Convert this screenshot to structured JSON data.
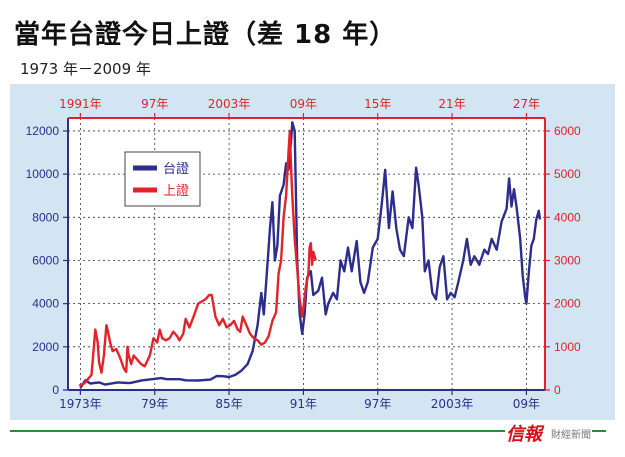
{
  "title": "當年台證今日上證（差 18 年）",
  "subtitle": "1973 年－2009 年",
  "brand": {
    "name": "信報",
    "sub": "財經新聞"
  },
  "chart_data": {
    "type": "line",
    "legend_position": "top-left",
    "grid": true,
    "x_bottom": {
      "ticks": [
        {
          "label": "1973年",
          "year": 1973
        },
        {
          "label": "79年",
          "year": 1979
        },
        {
          "label": "85年",
          "year": 1985
        },
        {
          "label": "91年",
          "year": 1991
        },
        {
          "label": "97年",
          "year": 1997
        },
        {
          "label": "2003年",
          "year": 2003
        },
        {
          "label": "09年",
          "year": 2009
        }
      ],
      "range": [
        1972,
        2010.5
      ]
    },
    "x_top": {
      "ticks": [
        {
          "label": "1991年",
          "year": 1991
        },
        {
          "label": "97年",
          "year": 1997
        },
        {
          "label": "2003年",
          "year": 2003
        },
        {
          "label": "09年",
          "year": 2009
        },
        {
          "label": "15年",
          "year": 2015
        },
        {
          "label": "21年",
          "year": 2021
        },
        {
          "label": "27年",
          "year": 2027
        }
      ],
      "range": [
        1990,
        2028.5
      ]
    },
    "y_left": {
      "ticks": [
        0,
        2000,
        4000,
        6000,
        8000,
        10000,
        12000
      ],
      "range": [
        0,
        12600
      ],
      "color": "#2d2d8c"
    },
    "y_right": {
      "ticks": [
        0,
        1000,
        2000,
        3000,
        4000,
        5000,
        6000
      ],
      "range": [
        0,
        6300
      ],
      "color": "#e0242a"
    },
    "series": [
      {
        "name": "台證",
        "axis": "left",
        "x_axis": "bottom",
        "color": "#2d2d8c",
        "points": [
          [
            1973,
            100
          ],
          [
            1973.4,
            450
          ],
          [
            1973.8,
            300
          ],
          [
            1974.5,
            350
          ],
          [
            1975,
            250
          ],
          [
            1976,
            350
          ],
          [
            1977,
            320
          ],
          [
            1978,
            450
          ],
          [
            1978.8,
            500
          ],
          [
            1979.5,
            550
          ],
          [
            1980,
            500
          ],
          [
            1981,
            500
          ],
          [
            1981.5,
            450
          ],
          [
            1982.5,
            440
          ],
          [
            1983.5,
            480
          ],
          [
            1984,
            650
          ],
          [
            1984.5,
            640
          ],
          [
            1985,
            600
          ],
          [
            1985.5,
            700
          ],
          [
            1986,
            900
          ],
          [
            1986.5,
            1200
          ],
          [
            1986.9,
            1800
          ],
          [
            1987.3,
            3000
          ],
          [
            1987.6,
            4500
          ],
          [
            1987.8,
            3500
          ],
          [
            1988,
            5000
          ],
          [
            1988.3,
            7500
          ],
          [
            1988.5,
            8700
          ],
          [
            1988.7,
            6000
          ],
          [
            1988.9,
            6700
          ],
          [
            1989.1,
            9000
          ],
          [
            1989.4,
            9500
          ],
          [
            1989.6,
            10500
          ],
          [
            1989.8,
            10200
          ],
          [
            1990.0,
            11500
          ],
          [
            1990.1,
            12400
          ],
          [
            1990.3,
            12000
          ],
          [
            1990.5,
            6000
          ],
          [
            1990.7,
            3500
          ],
          [
            1990.9,
            2600
          ],
          [
            1991.1,
            3500
          ],
          [
            1991.3,
            5200
          ],
          [
            1991.6,
            5500
          ],
          [
            1991.8,
            4400
          ],
          [
            1992.2,
            4600
          ],
          [
            1992.5,
            5200
          ],
          [
            1992.8,
            3500
          ],
          [
            1993,
            4000
          ],
          [
            1993.4,
            4500
          ],
          [
            1993.7,
            4200
          ],
          [
            1994,
            6000
          ],
          [
            1994.3,
            5500
          ],
          [
            1994.6,
            6600
          ],
          [
            1994.9,
            5500
          ],
          [
            1995.3,
            6900
          ],
          [
            1995.6,
            5000
          ],
          [
            1995.9,
            4500
          ],
          [
            1996.2,
            5000
          ],
          [
            1996.6,
            6600
          ],
          [
            1997,
            7000
          ],
          [
            1997.3,
            8500
          ],
          [
            1997.6,
            10200
          ],
          [
            1997.9,
            7500
          ],
          [
            1998.2,
            9200
          ],
          [
            1998.5,
            7500
          ],
          [
            1998.8,
            6500
          ],
          [
            1999.1,
            6200
          ],
          [
            1999.5,
            8000
          ],
          [
            1999.8,
            7500
          ],
          [
            2000.1,
            10300
          ],
          [
            2000.3,
            9500
          ],
          [
            2000.6,
            8000
          ],
          [
            2000.8,
            5500
          ],
          [
            2001.1,
            6000
          ],
          [
            2001.4,
            4500
          ],
          [
            2001.7,
            4200
          ],
          [
            2002.0,
            5700
          ],
          [
            2002.3,
            6200
          ],
          [
            2002.6,
            4200
          ],
          [
            2002.9,
            4500
          ],
          [
            2003.2,
            4300
          ],
          [
            2003.5,
            5000
          ],
          [
            2003.9,
            6000
          ],
          [
            2004.2,
            7000
          ],
          [
            2004.5,
            5800
          ],
          [
            2004.8,
            6200
          ],
          [
            2005.2,
            5800
          ],
          [
            2005.6,
            6500
          ],
          [
            2005.9,
            6300
          ],
          [
            2006.2,
            7000
          ],
          [
            2006.6,
            6500
          ],
          [
            2007.0,
            7800
          ],
          [
            2007.4,
            8400
          ],
          [
            2007.6,
            9800
          ],
          [
            2007.8,
            8500
          ],
          [
            2008.0,
            9300
          ],
          [
            2008.2,
            8500
          ],
          [
            2008.5,
            7000
          ],
          [
            2008.7,
            5300
          ],
          [
            2008.9,
            4300
          ],
          [
            2009.0,
            4000
          ],
          [
            2009.2,
            5500
          ],
          [
            2009.4,
            6700
          ],
          [
            2009.6,
            7000
          ],
          [
            2009.8,
            7900
          ],
          [
            2010.0,
            8300
          ],
          [
            2010.1,
            7900
          ]
        ]
      },
      {
        "name": "上證",
        "axis": "right",
        "x_axis": "top",
        "color": "#e0242a",
        "points": [
          [
            1990.9,
            100
          ],
          [
            1991.3,
            150
          ],
          [
            1991.6,
            250
          ],
          [
            1991.9,
            350
          ],
          [
            1992.0,
            700
          ],
          [
            1992.2,
            1400
          ],
          [
            1992.4,
            1100
          ],
          [
            1992.5,
            650
          ],
          [
            1992.7,
            400
          ],
          [
            1992.9,
            800
          ],
          [
            1993.1,
            1500
          ],
          [
            1993.2,
            1400
          ],
          [
            1993.4,
            1100
          ],
          [
            1993.6,
            900
          ],
          [
            1993.9,
            950
          ],
          [
            1994.2,
            750
          ],
          [
            1994.5,
            500
          ],
          [
            1994.7,
            420
          ],
          [
            1994.8,
            1000
          ],
          [
            1994.9,
            800
          ],
          [
            1995.1,
            600
          ],
          [
            1995.3,
            800
          ],
          [
            1995.6,
            700
          ],
          [
            1995.9,
            600
          ],
          [
            1996.2,
            550
          ],
          [
            1996.6,
            800
          ],
          [
            1996.9,
            1200
          ],
          [
            1997.2,
            1100
          ],
          [
            1997.4,
            1400
          ],
          [
            1997.6,
            1200
          ],
          [
            1997.9,
            1150
          ],
          [
            1998.2,
            1200
          ],
          [
            1998.5,
            1350
          ],
          [
            1998.8,
            1250
          ],
          [
            1999.0,
            1150
          ],
          [
            1999.3,
            1300
          ],
          [
            1999.5,
            1650
          ],
          [
            1999.8,
            1450
          ],
          [
            2000.2,
            1750
          ],
          [
            2000.5,
            2000
          ],
          [
            2000.8,
            2050
          ],
          [
            2001.1,
            2100
          ],
          [
            2001.4,
            2200
          ],
          [
            2001.6,
            2200
          ],
          [
            2001.9,
            1700
          ],
          [
            2002.2,
            1500
          ],
          [
            2002.5,
            1650
          ],
          [
            2002.8,
            1450
          ],
          [
            2003.1,
            1500
          ],
          [
            2003.4,
            1600
          ],
          [
            2003.7,
            1400
          ],
          [
            2003.9,
            1350
          ],
          [
            2004.1,
            1700
          ],
          [
            2004.4,
            1500
          ],
          [
            2004.7,
            1300
          ],
          [
            2005.0,
            1200
          ],
          [
            2005.3,
            1150
          ],
          [
            2005.6,
            1050
          ],
          [
            2005.9,
            1100
          ],
          [
            2006.2,
            1250
          ],
          [
            2006.5,
            1600
          ],
          [
            2006.8,
            1800
          ],
          [
            2007.0,
            2700
          ],
          [
            2007.2,
            3000
          ],
          [
            2007.4,
            4000
          ],
          [
            2007.6,
            4500
          ],
          [
            2007.8,
            5500
          ],
          [
            2007.9,
            6000
          ],
          [
            2008.0,
            5200
          ],
          [
            2008.1,
            4500
          ],
          [
            2008.3,
            3500
          ],
          [
            2008.5,
            2800
          ],
          [
            2008.7,
            2100
          ],
          [
            2008.9,
            1700
          ],
          [
            2009.0,
            1900
          ],
          [
            2009.2,
            2400
          ],
          [
            2009.4,
            2700
          ],
          [
            2009.5,
            3300
          ],
          [
            2009.6,
            3400
          ],
          [
            2009.7,
            2900
          ],
          [
            2009.8,
            3200
          ],
          [
            2009.9,
            3100
          ],
          [
            2010.0,
            3000
          ]
        ]
      }
    ]
  }
}
